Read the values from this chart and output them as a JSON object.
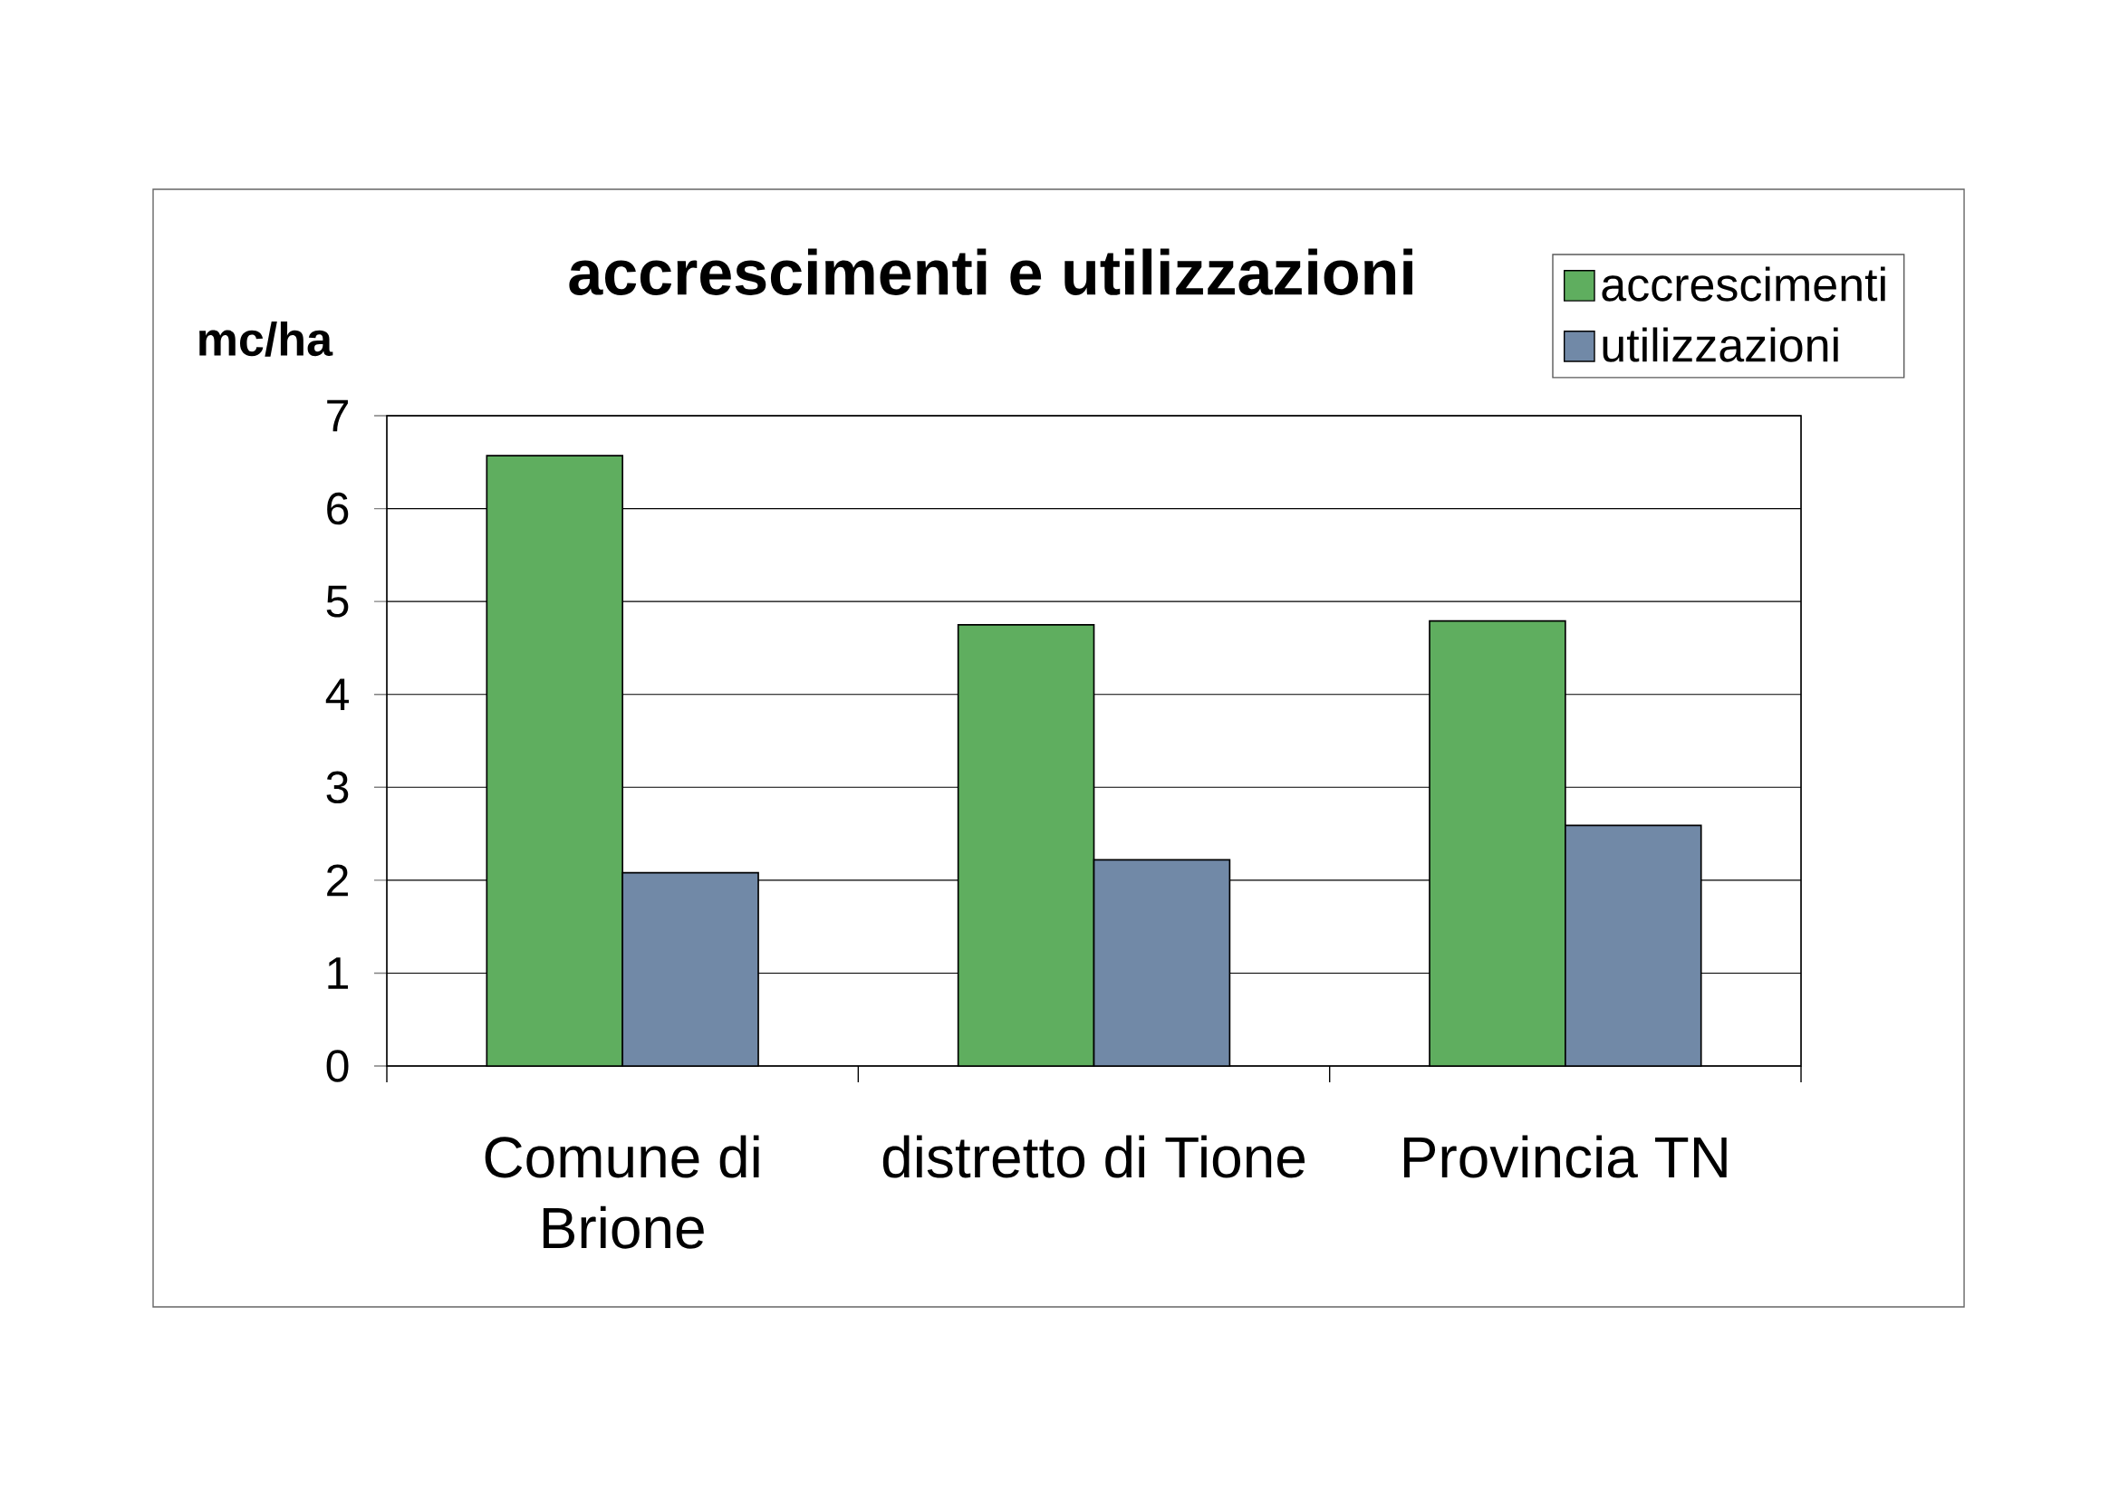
{
  "chart_data": {
    "type": "bar",
    "title": "accrescimenti e utilizzazioni",
    "ylabel": "mc/ha",
    "categories": [
      "Comune di Brione",
      "distretto di Tione",
      "Provincia TN"
    ],
    "series": [
      {
        "name": "accrescimenti",
        "color": "#5fae5f",
        "values": [
          6.57,
          4.75,
          4.79
        ]
      },
      {
        "name": "utilizzazioni",
        "color": "#7189a7",
        "values": [
          2.08,
          2.22,
          2.59
        ]
      }
    ],
    "ylim": [
      0,
      7
    ],
    "yticks": [
      0,
      1,
      2,
      3,
      4,
      5,
      6,
      7
    ],
    "grid": "y",
    "legend": "top right"
  }
}
